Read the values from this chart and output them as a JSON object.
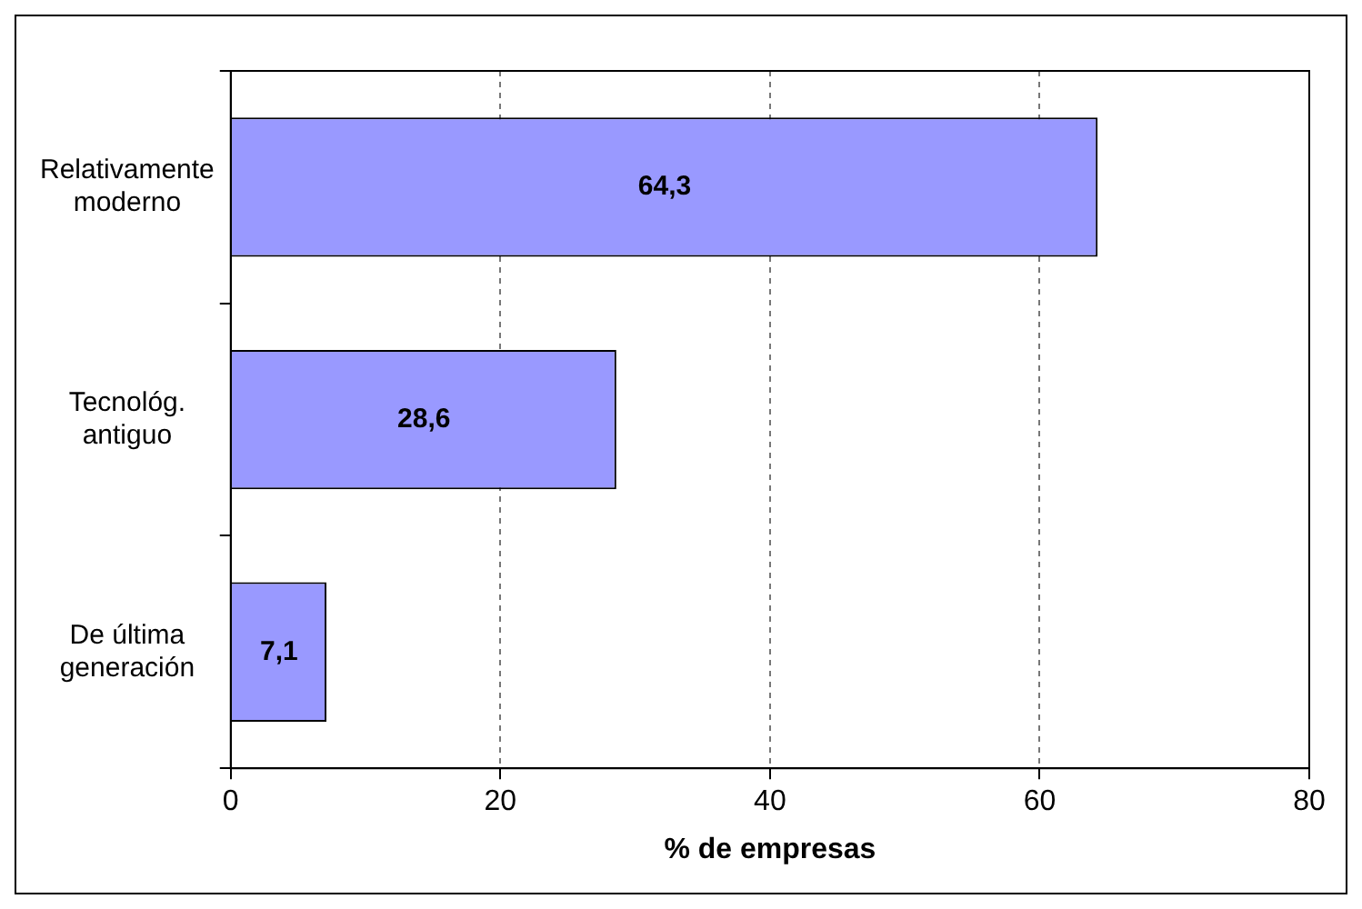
{
  "chart_data": {
    "type": "bar",
    "orientation": "horizontal",
    "categories": [
      "Relativamente\nmoderno",
      "Tecnológ.\nantiguo",
      "De última\ngeneración"
    ],
    "values": [
      64.3,
      28.6,
      7.1
    ],
    "color": "#9999ff",
    "value_labels": [
      "64,3",
      "28,6",
      "7,1"
    ],
    "xlim": [
      0,
      80
    ],
    "xticks": [
      0,
      20,
      40,
      60,
      80
    ],
    "xlabel": "% de empresas",
    "grid": "x",
    "legend": false
  }
}
